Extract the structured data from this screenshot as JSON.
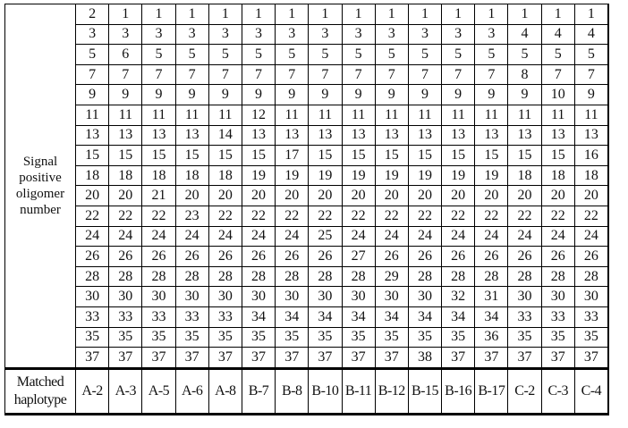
{
  "row_label": "Signal positive oligomer number",
  "footer_label": "Matched haplotype",
  "haplotypes": [
    "A-2",
    "A-3",
    "A-5",
    "A-6",
    "A-8",
    "B-7",
    "B-8",
    "B-10",
    "B-11",
    "B-12",
    "B-15",
    "B-16",
    "B-17",
    "C-2",
    "C-3",
    "C-4"
  ],
  "rows": [
    [
      "2",
      "1",
      "1",
      "1",
      "1",
      "1",
      "1",
      "1",
      "1",
      "1",
      "1",
      "1",
      "1",
      "1",
      "1",
      "1"
    ],
    [
      "3",
      "3",
      "3",
      "3",
      "3",
      "3",
      "3",
      "3",
      "3",
      "3",
      "3",
      "3",
      "3",
      "4",
      "4",
      "4"
    ],
    [
      "5",
      "6",
      "5",
      "5",
      "5",
      "5",
      "5",
      "5",
      "5",
      "5",
      "5",
      "5",
      "5",
      "5",
      "5",
      "5"
    ],
    [
      "7",
      "7",
      "7",
      "7",
      "7",
      "7",
      "7",
      "7",
      "7",
      "7",
      "7",
      "7",
      "7",
      "8",
      "7",
      "7"
    ],
    [
      "9",
      "9",
      "9",
      "9",
      "9",
      "9",
      "9",
      "9",
      "9",
      "9",
      "9",
      "9",
      "9",
      "9",
      "10",
      "9"
    ],
    [
      "11",
      "11",
      "11",
      "11",
      "11",
      "12",
      "11",
      "11",
      "11",
      "11",
      "11",
      "11",
      "11",
      "11",
      "11",
      "11"
    ],
    [
      "13",
      "13",
      "13",
      "13",
      "14",
      "13",
      "13",
      "13",
      "13",
      "13",
      "13",
      "13",
      "13",
      "13",
      "13",
      "13"
    ],
    [
      "15",
      "15",
      "15",
      "15",
      "15",
      "15",
      "17",
      "15",
      "15",
      "15",
      "15",
      "15",
      "15",
      "15",
      "15",
      "16"
    ],
    [
      "18",
      "18",
      "18",
      "18",
      "18",
      "19",
      "19",
      "19",
      "19",
      "19",
      "19",
      "19",
      "19",
      "18",
      "18",
      "18"
    ],
    [
      "20",
      "20",
      "21",
      "20",
      "20",
      "20",
      "20",
      "20",
      "20",
      "20",
      "20",
      "20",
      "20",
      "20",
      "20",
      "20"
    ],
    [
      "22",
      "22",
      "22",
      "23",
      "22",
      "22",
      "22",
      "22",
      "22",
      "22",
      "22",
      "22",
      "22",
      "22",
      "22",
      "22"
    ],
    [
      "24",
      "24",
      "24",
      "24",
      "24",
      "24",
      "24",
      "25",
      "24",
      "24",
      "24",
      "24",
      "24",
      "24",
      "24",
      "24"
    ],
    [
      "26",
      "26",
      "26",
      "26",
      "26",
      "26",
      "26",
      "26",
      "27",
      "26",
      "26",
      "26",
      "26",
      "26",
      "26",
      "26"
    ],
    [
      "28",
      "28",
      "28",
      "28",
      "28",
      "28",
      "28",
      "28",
      "28",
      "29",
      "28",
      "28",
      "28",
      "28",
      "28",
      "28"
    ],
    [
      "30",
      "30",
      "30",
      "30",
      "30",
      "30",
      "30",
      "30",
      "30",
      "30",
      "30",
      "32",
      "31",
      "30",
      "30",
      "30"
    ],
    [
      "33",
      "33",
      "33",
      "33",
      "33",
      "34",
      "34",
      "34",
      "34",
      "34",
      "34",
      "34",
      "34",
      "33",
      "33",
      "33"
    ],
    [
      "35",
      "35",
      "35",
      "35",
      "35",
      "35",
      "35",
      "35",
      "35",
      "35",
      "35",
      "35",
      "36",
      "35",
      "35",
      "35"
    ],
    [
      "37",
      "37",
      "37",
      "37",
      "37",
      "37",
      "37",
      "37",
      "37",
      "37",
      "38",
      "37",
      "37",
      "37",
      "37",
      "37"
    ]
  ]
}
